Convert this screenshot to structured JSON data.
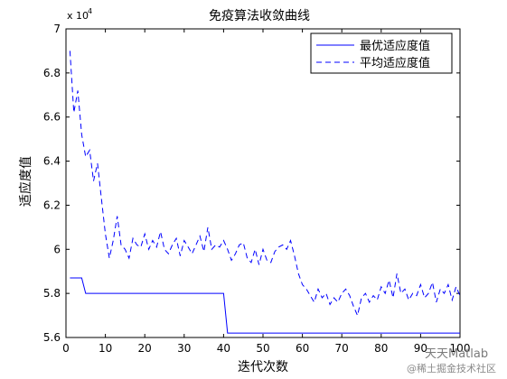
{
  "chart_data": {
    "type": "line",
    "title": "免疫算法收敛曲线",
    "xlabel": "迭代次数",
    "ylabel": "适应度值",
    "y_exponent_label": "x 10",
    "y_exponent_power": "4",
    "xlim": [
      0,
      100
    ],
    "ylim": [
      5.6,
      7.0
    ],
    "x_ticks": [
      0,
      10,
      20,
      30,
      40,
      50,
      60,
      70,
      80,
      90,
      100
    ],
    "x_tick_labels": [
      "0",
      "10",
      "20",
      "30",
      "40",
      "50",
      "60",
      "70",
      "80",
      "90",
      "100"
    ],
    "y_ticks": [
      5.6,
      5.8,
      6.0,
      6.2,
      6.4,
      6.6,
      6.8,
      7.0
    ],
    "y_tick_labels": [
      "5.6",
      "5.8",
      "6",
      "6.2",
      "6.4",
      "6.6",
      "6.8",
      "7"
    ],
    "legend_position": "top-right",
    "series": [
      {
        "name": "最优适应度值",
        "color": "#0000ff",
        "dash": "solid",
        "x": [
          1,
          4,
          5,
          40,
          41,
          100
        ],
        "y": [
          5.87,
          5.87,
          5.8,
          5.8,
          5.62,
          5.62
        ]
      },
      {
        "name": "平均适应度值",
        "color": "#0000ff",
        "dash": "dashed",
        "x": [
          1,
          2,
          3,
          4,
          5,
          6,
          7,
          8,
          9,
          10,
          11,
          12,
          13,
          14,
          15,
          16,
          17,
          18,
          19,
          20,
          21,
          22,
          23,
          24,
          25,
          26,
          27,
          28,
          29,
          30,
          31,
          32,
          33,
          34,
          35,
          36,
          37,
          38,
          39,
          40,
          41,
          42,
          43,
          44,
          45,
          46,
          47,
          48,
          49,
          50,
          51,
          52,
          53,
          54,
          55,
          56,
          57,
          58,
          59,
          60,
          61,
          62,
          63,
          64,
          65,
          66,
          67,
          68,
          69,
          70,
          71,
          72,
          73,
          74,
          75,
          76,
          77,
          78,
          79,
          80,
          81,
          82,
          83,
          84,
          85,
          86,
          87,
          88,
          89,
          90,
          91,
          92,
          93,
          94,
          95,
          96,
          97,
          98,
          99,
          100
        ],
        "y": [
          6.9,
          6.62,
          6.72,
          6.52,
          6.42,
          6.45,
          6.31,
          6.39,
          6.23,
          6.07,
          5.96,
          6.04,
          6.15,
          6.02,
          6.0,
          5.96,
          6.05,
          6.02,
          6.01,
          6.07,
          6.0,
          6.04,
          6.01,
          6.08,
          6.0,
          5.98,
          6.02,
          6.05,
          5.97,
          6.04,
          6.01,
          5.98,
          6.02,
          6.06,
          5.99,
          6.1,
          6.0,
          6.02,
          6.01,
          6.04,
          6.0,
          5.95,
          5.98,
          6.02,
          6.03,
          5.96,
          5.94,
          6.0,
          5.93,
          6.0,
          5.95,
          5.94,
          5.99,
          6.01,
          6.02,
          6.0,
          6.04,
          5.97,
          5.89,
          5.84,
          5.82,
          5.79,
          5.76,
          5.82,
          5.78,
          5.8,
          5.75,
          5.78,
          5.76,
          5.8,
          5.82,
          5.79,
          5.74,
          5.7,
          5.78,
          5.8,
          5.76,
          5.79,
          5.77,
          5.83,
          5.8,
          5.86,
          5.78,
          5.89,
          5.8,
          5.82,
          5.77,
          5.8,
          5.79,
          5.84,
          5.78,
          5.8,
          5.85,
          5.76,
          5.82,
          5.8,
          5.84,
          5.77,
          5.83,
          5.79
        ]
      }
    ]
  },
  "watermark": {
    "main": "天天Matlab",
    "sub": "@稀土掘金技术社区"
  }
}
